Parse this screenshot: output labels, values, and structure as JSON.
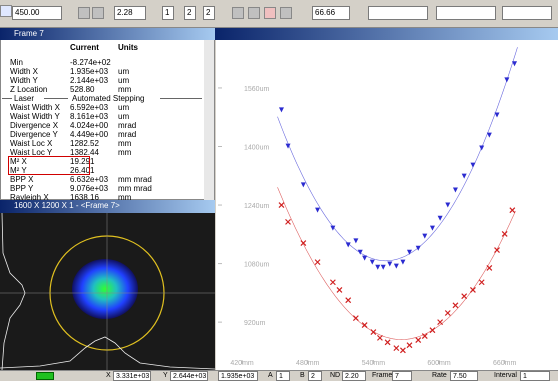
{
  "toolbar": {
    "position": "450.00",
    "fields": [
      "2.28",
      "1",
      "2",
      "2",
      "66.66"
    ]
  },
  "results": {
    "title": "Frame 7",
    "header": [
      "Current",
      "Units"
    ],
    "rows": [
      [
        "Min",
        "-8.274e+02"
      ],
      [
        "Width X",
        "1.935e+03",
        "um"
      ],
      [
        "Width Y",
        "2.144e+03",
        "um"
      ],
      [
        "Z Location",
        "528.80",
        "mm"
      ],
      [
        "Laser",
        "Automated Stepping"
      ],
      [
        "Waist Width X",
        "6.592e+03",
        "um"
      ],
      [
        "Waist Width Y",
        "8.161e+03",
        "um"
      ],
      [
        "Divergence X",
        "4.024e+00",
        "mrad"
      ],
      [
        "Divergence Y",
        "4.449e+00",
        "mrad"
      ],
      [
        "Waist Loc X",
        "1282.52",
        "mm"
      ],
      [
        "Waist Loc Y",
        "1382.44",
        "mm"
      ],
      [
        "M² X",
        "19.291"
      ],
      [
        "M² Y",
        "26.401"
      ],
      [
        "BPP X",
        "6.632e+03",
        "mm mrad"
      ],
      [
        "BPP Y",
        "9.076e+03",
        "mm mrad"
      ],
      [
        "Rayleigh X",
        "1638.16",
        "mm"
      ]
    ]
  },
  "beam": {
    "title": "1600 X 1200 X 1 - <Frame 7>"
  },
  "plot": {
    "type": "scatter",
    "xlim": [
      398,
      706
    ],
    "ylim": [
      822,
      1691
    ],
    "xticks": [
      {
        "value": 420,
        "label": "420mm"
      },
      {
        "value": 480,
        "label": "480mm"
      },
      {
        "value": 540,
        "label": "540mm"
      },
      {
        "value": 600,
        "label": "600mm"
      },
      {
        "value": 660,
        "label": "660mm"
      }
    ],
    "yticks": [
      {
        "value": 920,
        "label": "920um"
      },
      {
        "value": 1080,
        "label": "1080um"
      },
      {
        "value": 1240,
        "label": "1240um"
      },
      {
        "value": 1400,
        "label": "1400um"
      },
      {
        "value": 1560,
        "label": "1560um"
      }
    ],
    "series": [
      {
        "color": "#2b2bd0",
        "marker": "triangle-down",
        "x": [
          456,
          462,
          476,
          489,
          503,
          517,
          524,
          528,
          532,
          539,
          544,
          549,
          555,
          561,
          567,
          573,
          581,
          587,
          594,
          601,
          608,
          615,
          623,
          631,
          639,
          646,
          653,
          662,
          669
        ],
        "values": [
          1500,
          1401,
          1295,
          1226,
          1177,
          1131,
          1142,
          1111,
          1095,
          1084,
          1070,
          1070,
          1079,
          1073,
          1084,
          1111,
          1122,
          1155,
          1177,
          1204,
          1240,
          1281,
          1319,
          1349,
          1396,
          1431,
          1486,
          1582,
          1626
        ]
      },
      {
        "color": "#d02020",
        "marker": "x",
        "x": [
          456,
          462,
          476,
          489,
          503,
          509,
          517,
          524,
          532,
          540,
          546,
          553,
          561,
          567,
          573,
          581,
          587,
          594,
          601,
          608,
          615,
          623,
          631,
          639,
          646,
          653,
          660,
          667
        ],
        "values": [
          1240,
          1194,
          1136,
          1084,
          1029,
          1008,
          980,
          931,
          912,
          893,
          877,
          865,
          849,
          843,
          857,
          871,
          882,
          898,
          920,
          945,
          966,
          991,
          1008,
          1029,
          1068,
          1117,
          1161,
          1226
        ]
      }
    ]
  },
  "status": {
    "x": [
      "X",
      "3.331e+03"
    ],
    "y": [
      "Y",
      "2.644e+03"
    ],
    "width": "1.935e+03",
    "a": [
      "A",
      "1"
    ],
    "b": [
      "B",
      "2"
    ],
    "nd": [
      "ND",
      "2.20"
    ],
    "frame": [
      "Frame",
      "7"
    ],
    "rate": [
      "Rate",
      "7.50"
    ],
    "interval": [
      "Interval",
      "1"
    ]
  }
}
